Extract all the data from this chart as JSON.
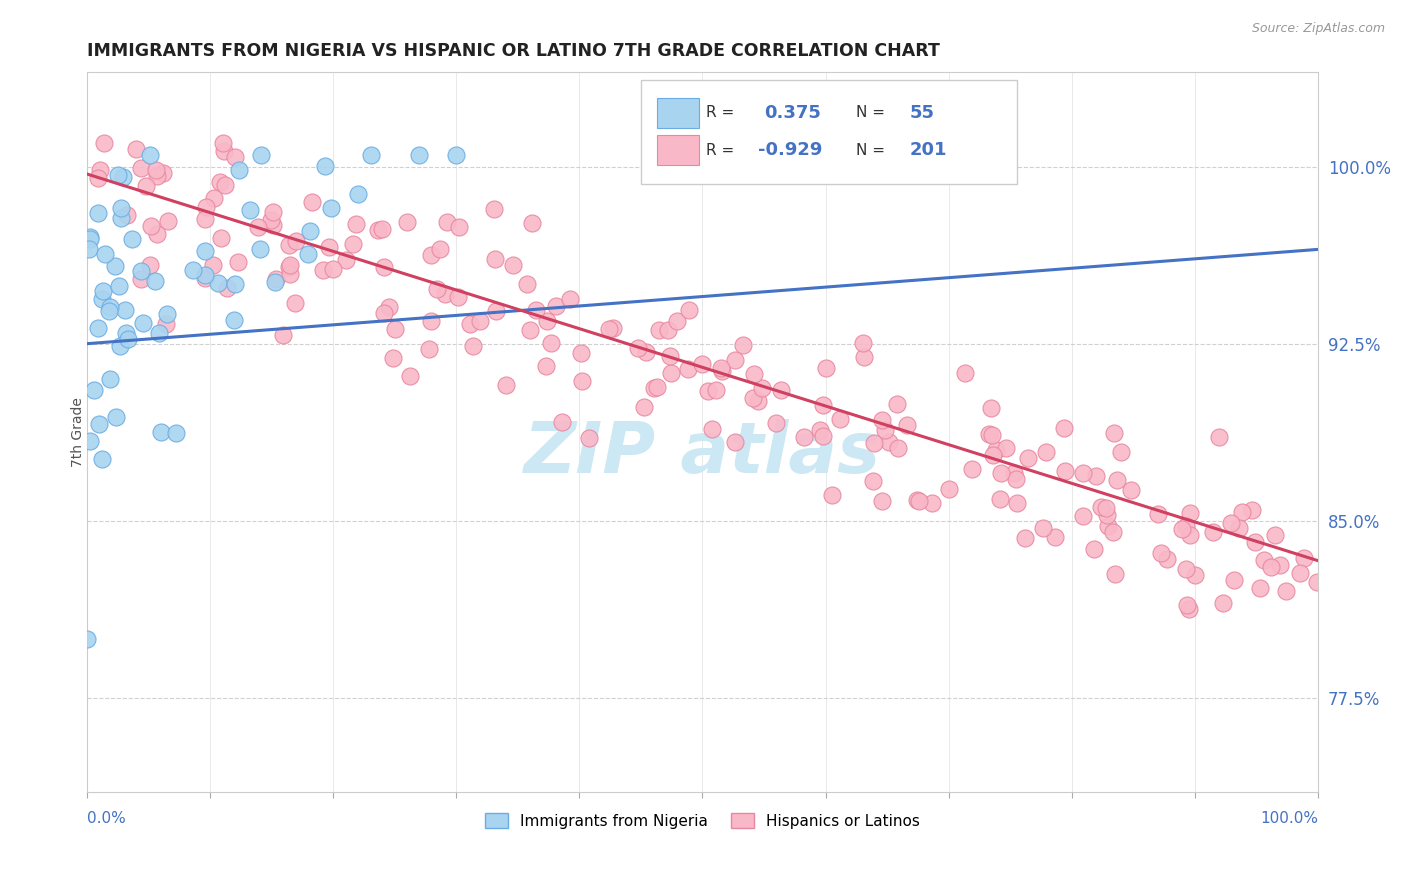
{
  "title": "IMMIGRANTS FROM NIGERIA VS HISPANIC OR LATINO 7TH GRADE CORRELATION CHART",
  "source": "Source: ZipAtlas.com",
  "ylabel": "7th Grade",
  "ytick_labels": [
    "77.5%",
    "85.0%",
    "92.5%",
    "100.0%"
  ],
  "ytick_values": [
    0.775,
    0.85,
    0.925,
    1.0
  ],
  "xlim": [
    0.0,
    1.0
  ],
  "ylim": [
    0.735,
    1.04
  ],
  "r1_val": "0.375",
  "n1_val": "55",
  "r2_val": "-0.929",
  "n2_val": "201",
  "blue_color": "#a8d4f0",
  "blue_edge": "#6aade4",
  "blue_line_color": "#4472c4",
  "pink_color": "#f9b8c8",
  "pink_edge": "#e888a0",
  "pink_line_color": "#d04060",
  "watermark_color": "#cce8f4",
  "background_color": "#ffffff"
}
